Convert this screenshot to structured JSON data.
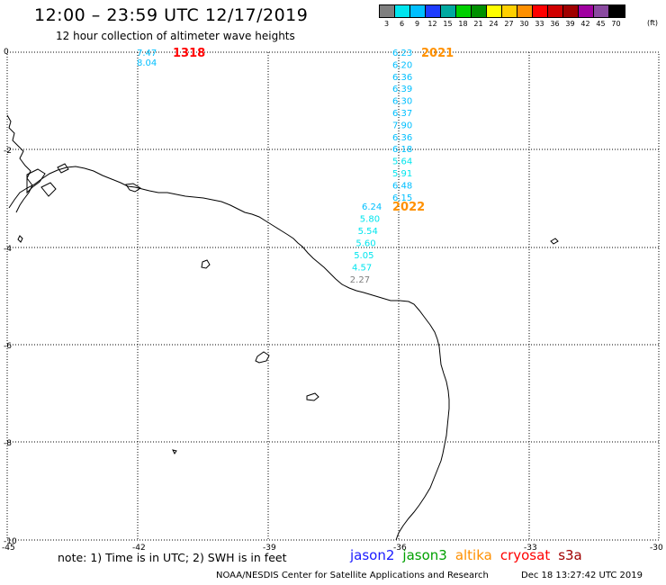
{
  "header": {
    "title": "12:00 – 23:59 UTC 12/17/2019",
    "subtitle": "12 hour collection of altimeter wave heights"
  },
  "legend": {
    "unit": "(ft)",
    "bins": [
      {
        "label": "3",
        "color": "#7f7f7f"
      },
      {
        "label": "6",
        "color": "#00e5ee"
      },
      {
        "label": "9",
        "color": "#00bfff"
      },
      {
        "label": "12",
        "color": "#1e3cff"
      },
      {
        "label": "15",
        "color": "#00a9a0"
      },
      {
        "label": "18",
        "color": "#00d000"
      },
      {
        "label": "21",
        "color": "#009000"
      },
      {
        "label": "24",
        "color": "#ffff00"
      },
      {
        "label": "27",
        "color": "#ffd000"
      },
      {
        "label": "30",
        "color": "#ff9000"
      },
      {
        "label": "33",
        "color": "#ff0000"
      },
      {
        "label": "36",
        "color": "#d00000"
      },
      {
        "label": "39",
        "color": "#a00000"
      },
      {
        "label": "42",
        "color": "#a000a0"
      },
      {
        "label": "45",
        "color": "#8a4aa0"
      },
      {
        "label": "70",
        "color": "#000000"
      }
    ]
  },
  "axes": {
    "lat_labels": [
      "0",
      "-2",
      "-4",
      "-6",
      "-8",
      "-10"
    ],
    "lon_labels": [
      "-45",
      "-42",
      "-39",
      "-36",
      "-33",
      "-30"
    ]
  },
  "tracks": [
    {
      "pass_id": "1318",
      "pass_color": "#ff0000",
      "observations": [
        {
          "value": "7.47",
          "color": "#00bfff"
        },
        {
          "value": "8.04",
          "color": "#00bfff"
        }
      ]
    },
    {
      "pass_id": "2021",
      "pass_color": "#ff9000",
      "observations": [
        {
          "value": "6.23",
          "color": "#00bfff"
        },
        {
          "value": "6.20",
          "color": "#00bfff"
        },
        {
          "value": "6.36",
          "color": "#00bfff"
        },
        {
          "value": "6.39",
          "color": "#00bfff"
        },
        {
          "value": "6.30",
          "color": "#00bfff"
        },
        {
          "value": "6.37",
          "color": "#00bfff"
        },
        {
          "value": "7.90",
          "color": "#00bfff"
        },
        {
          "value": "6.36",
          "color": "#00bfff"
        },
        {
          "value": "6.18",
          "color": "#00bfff"
        },
        {
          "value": "5.64",
          "color": "#00e5ee"
        },
        {
          "value": "5.91",
          "color": "#00e5ee"
        },
        {
          "value": "6.48",
          "color": "#00bfff"
        },
        {
          "value": "6.15",
          "color": "#00bfff"
        }
      ]
    },
    {
      "pass_id": "2022",
      "pass_color": "#ff9000",
      "observations": [
        {
          "value": "6.24",
          "color": "#00bfff"
        },
        {
          "value": "5.80",
          "color": "#00e5ee"
        },
        {
          "value": "5.54",
          "color": "#00e5ee"
        },
        {
          "value": "5.60",
          "color": "#00e5ee"
        },
        {
          "value": "5.05",
          "color": "#00e5ee"
        },
        {
          "value": "4.57",
          "color": "#00e5ee"
        },
        {
          "value": "2.27",
          "color": "#7f7f7f"
        }
      ]
    }
  ],
  "footer": {
    "note": "note: 1) Time is in UTC; 2) SWH is in feet",
    "satellites": [
      {
        "name": "jason2",
        "color": "#1a1aff"
      },
      {
        "name": "jason3",
        "color": "#00a000"
      },
      {
        "name": "altika",
        "color": "#ff9000"
      },
      {
        "name": "cryosat",
        "color": "#ff0000"
      },
      {
        "name": "s3a",
        "color": "#a00000"
      }
    ],
    "credit": "NOAA/NESDIS Center for Satellite Applications and Research",
    "timestamp": "Dec 18 13:27:42 UTC 2019"
  }
}
